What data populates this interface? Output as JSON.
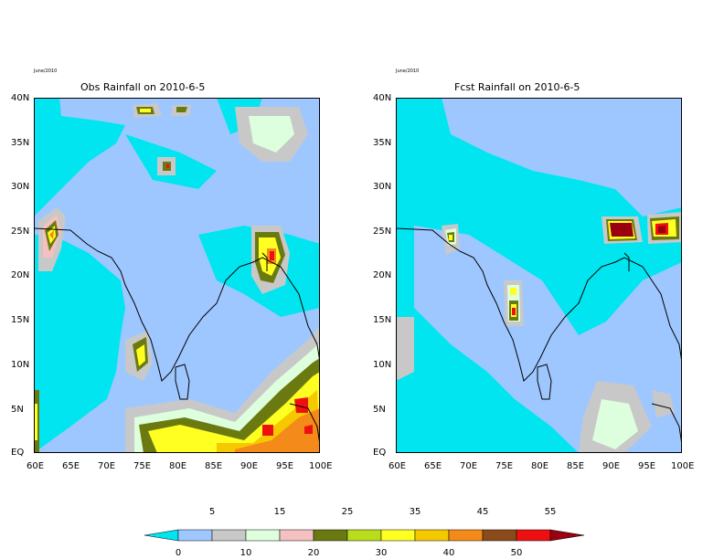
{
  "left_panel": {
    "date_label": "June/2010",
    "title": "Obs Rainfall on 2010-6-5"
  },
  "right_panel": {
    "date_label": "June/2010",
    "title": "Fcst Rainfall on 2010-6-5"
  },
  "lat_ticks": [
    "40N",
    "35N",
    "30N",
    "25N",
    "20N",
    "15N",
    "10N",
    "5N",
    "EQ"
  ],
  "lon_ticks": [
    "60E",
    "65E",
    "70E",
    "75E",
    "80E",
    "85E",
    "90E",
    "95E",
    "100E"
  ],
  "colorbar": {
    "bins": [
      {
        "range": "<0",
        "color": "#00e5f0"
      },
      {
        "range": "0-5",
        "color": "#9fc7ff"
      },
      {
        "range": "5-10",
        "color": "#c8c8c8"
      },
      {
        "range": "10-15",
        "color": "#ddffdd"
      },
      {
        "range": "15-20",
        "color": "#f5c0c0"
      },
      {
        "range": "20-25",
        "color": "#6b7a10"
      },
      {
        "range": "25-30",
        "color": "#b9dd1a"
      },
      {
        "range": "30-35",
        "color": "#ffff22"
      },
      {
        "range": "35-40",
        "color": "#f5c800"
      },
      {
        "range": "40-45",
        "color": "#f48a1a"
      },
      {
        "range": "45-50",
        "color": "#8b4a1a"
      },
      {
        "range": "50-55",
        "color": "#ee1010"
      },
      {
        "range": ">55",
        "color": "#9a0010"
      }
    ],
    "upper_labels": [
      "5",
      "15",
      "25",
      "35",
      "45",
      "55"
    ],
    "lower_labels": [
      "0",
      "10",
      "20",
      "30",
      "40",
      "50"
    ]
  }
}
